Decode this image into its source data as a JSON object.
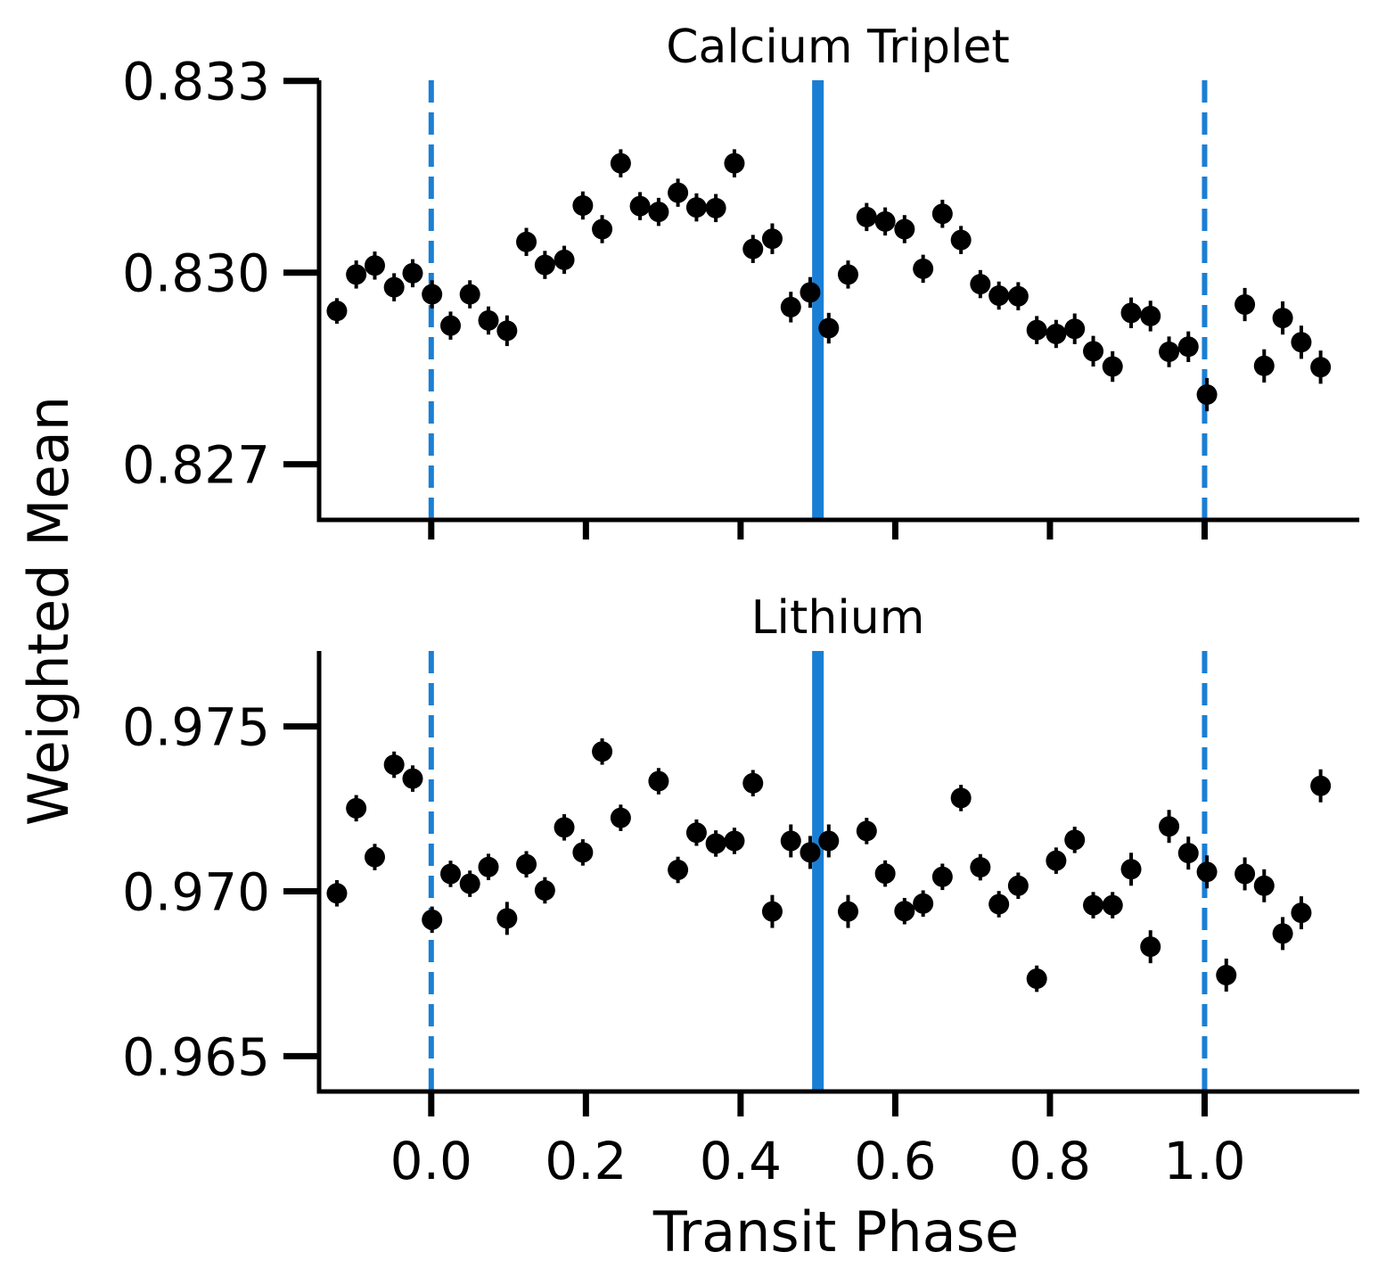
{
  "colors": {
    "accent": "#1a7fd4",
    "points": "#000000",
    "axes": "#000000"
  },
  "xaxis": {
    "label": "Transit Phase",
    "ticks": [
      0.0,
      0.2,
      0.4,
      0.6,
      0.8,
      1.0
    ],
    "tick_labels": [
      "0.0",
      "0.2",
      "0.4",
      "0.6",
      "0.8",
      "1.0"
    ],
    "xlim": [
      -0.145,
      1.2
    ]
  },
  "ylabel": "Weighted Mean",
  "chart_data": [
    {
      "type": "scatter",
      "title": "Calcium Triplet",
      "xlabel": "",
      "ylabel": "Weighted Mean",
      "xlim": [
        -0.145,
        1.2
      ],
      "ylim": [
        0.82613,
        0.83301
      ],
      "yticks": [
        0.827,
        0.83,
        0.833
      ],
      "ytick_labels": [
        "0.827",
        "0.830",
        "0.833"
      ],
      "vlines": [
        {
          "x": 0.0,
          "style": "dashed"
        },
        {
          "x": 0.5,
          "style": "solid"
        },
        {
          "x": 1.0,
          "style": "dashed"
        }
      ],
      "x": [
        -0.122,
        -0.097,
        -0.073,
        -0.048,
        -0.024,
        0.001,
        0.025,
        0.05,
        0.074,
        0.098,
        0.123,
        0.147,
        0.172,
        0.196,
        0.221,
        0.245,
        0.27,
        0.294,
        0.319,
        0.343,
        0.368,
        0.392,
        0.416,
        0.441,
        0.465,
        0.49,
        0.514,
        0.539,
        0.563,
        0.587,
        0.612,
        0.636,
        0.661,
        0.685,
        0.71,
        0.734,
        0.759,
        0.783,
        0.808,
        0.832,
        0.856,
        0.881,
        0.905,
        0.93,
        0.954,
        0.979,
        1.003,
        1.052,
        1.077,
        1.101,
        1.125,
        1.15
      ],
      "y": [
        0.8294,
        0.82997,
        0.83011,
        0.82977,
        0.82999,
        0.82966,
        0.82917,
        0.82966,
        0.82925,
        0.82909,
        0.83048,
        0.83012,
        0.8302,
        0.83105,
        0.83068,
        0.83171,
        0.83104,
        0.83095,
        0.83125,
        0.83102,
        0.83101,
        0.83171,
        0.83037,
        0.83053,
        0.82946,
        0.82969,
        0.82913,
        0.82997,
        0.83087,
        0.8308,
        0.83068,
        0.83006,
        0.83092,
        0.83051,
        0.82982,
        0.82964,
        0.82963,
        0.8291,
        0.82904,
        0.82912,
        0.82877,
        0.82853,
        0.82937,
        0.82932,
        0.82876,
        0.82884,
        0.82809,
        0.8295,
        0.82854,
        0.82929,
        0.82891,
        0.82852
      ],
      "yerr": [
        0.0002,
        0.00022,
        0.00022,
        0.00022,
        0.00022,
        0.00022,
        0.00022,
        0.00022,
        0.00022,
        0.00024,
        0.00022,
        0.00022,
        0.00022,
        0.00022,
        0.00022,
        0.00022,
        0.00022,
        0.00022,
        0.00022,
        0.00022,
        0.00022,
        0.00022,
        0.00022,
        0.00024,
        0.00024,
        0.00024,
        0.00024,
        0.00022,
        0.00022,
        0.00022,
        0.00022,
        0.00022,
        0.00022,
        0.00022,
        0.00022,
        0.00022,
        0.00022,
        0.00022,
        0.00022,
        0.00024,
        0.00024,
        0.00024,
        0.00024,
        0.00024,
        0.00024,
        0.00024,
        0.00026,
        0.00026,
        0.00026,
        0.00026,
        0.00026,
        0.00026
      ]
    },
    {
      "type": "scatter",
      "title": "Lithium",
      "xlabel": "Transit Phase",
      "ylabel": "",
      "xlim": [
        -0.145,
        1.2
      ],
      "ylim": [
        0.96393,
        0.97729
      ],
      "yticks": [
        0.965,
        0.97,
        0.975
      ],
      "ytick_labels": [
        "0.965",
        "0.970",
        "0.975"
      ],
      "vlines": [
        {
          "x": 0.0,
          "style": "dashed"
        },
        {
          "x": 0.5,
          "style": "solid"
        },
        {
          "x": 1.0,
          "style": "dashed"
        }
      ],
      "x": [
        -0.122,
        -0.097,
        -0.073,
        -0.048,
        -0.024,
        0.001,
        0.025,
        0.05,
        0.074,
        0.098,
        0.123,
        0.147,
        0.172,
        0.196,
        0.221,
        0.245,
        0.294,
        0.319,
        0.343,
        0.368,
        0.392,
        0.416,
        0.441,
        0.465,
        0.49,
        0.514,
        0.539,
        0.563,
        0.587,
        0.612,
        0.636,
        0.661,
        0.685,
        0.71,
        0.734,
        0.759,
        0.783,
        0.808,
        0.832,
        0.856,
        0.881,
        0.905,
        0.93,
        0.954,
        0.979,
        1.003,
        1.028,
        1.052,
        1.077,
        1.101,
        1.125,
        1.15
      ],
      "y": [
        0.96994,
        0.97252,
        0.97104,
        0.97384,
        0.97342,
        0.96914,
        0.97053,
        0.97023,
        0.97074,
        0.96918,
        0.97082,
        0.97003,
        0.97194,
        0.97118,
        0.97424,
        0.97223,
        0.97334,
        0.97065,
        0.97178,
        0.97145,
        0.97153,
        0.97328,
        0.96939,
        0.97153,
        0.97118,
        0.97153,
        0.96939,
        0.97183,
        0.97054,
        0.9694,
        0.96963,
        0.97044,
        0.97283,
        0.97073,
        0.96961,
        0.97017,
        0.96735,
        0.97093,
        0.97156,
        0.96958,
        0.96958,
        0.97067,
        0.96832,
        0.97197,
        0.97116,
        0.97059,
        0.96746,
        0.97053,
        0.97017,
        0.96872,
        0.96935,
        0.9732
      ],
      "yerr": [
        0.0004,
        0.0004,
        0.0004,
        0.0004,
        0.0004,
        0.0004,
        0.0004,
        0.0004,
        0.0004,
        0.0005,
        0.0004,
        0.0004,
        0.0004,
        0.0004,
        0.0004,
        0.0004,
        0.0004,
        0.0004,
        0.0004,
        0.0004,
        0.0004,
        0.0004,
        0.0005,
        0.0005,
        0.0005,
        0.0005,
        0.0005,
        0.0004,
        0.0004,
        0.0004,
        0.0004,
        0.0004,
        0.0004,
        0.0004,
        0.0004,
        0.0004,
        0.0004,
        0.0004,
        0.0004,
        0.0004,
        0.0004,
        0.0005,
        0.0005,
        0.0005,
        0.0005,
        0.0005,
        0.0005,
        0.0005,
        0.0005,
        0.0005,
        0.0005,
        0.0005
      ]
    }
  ]
}
